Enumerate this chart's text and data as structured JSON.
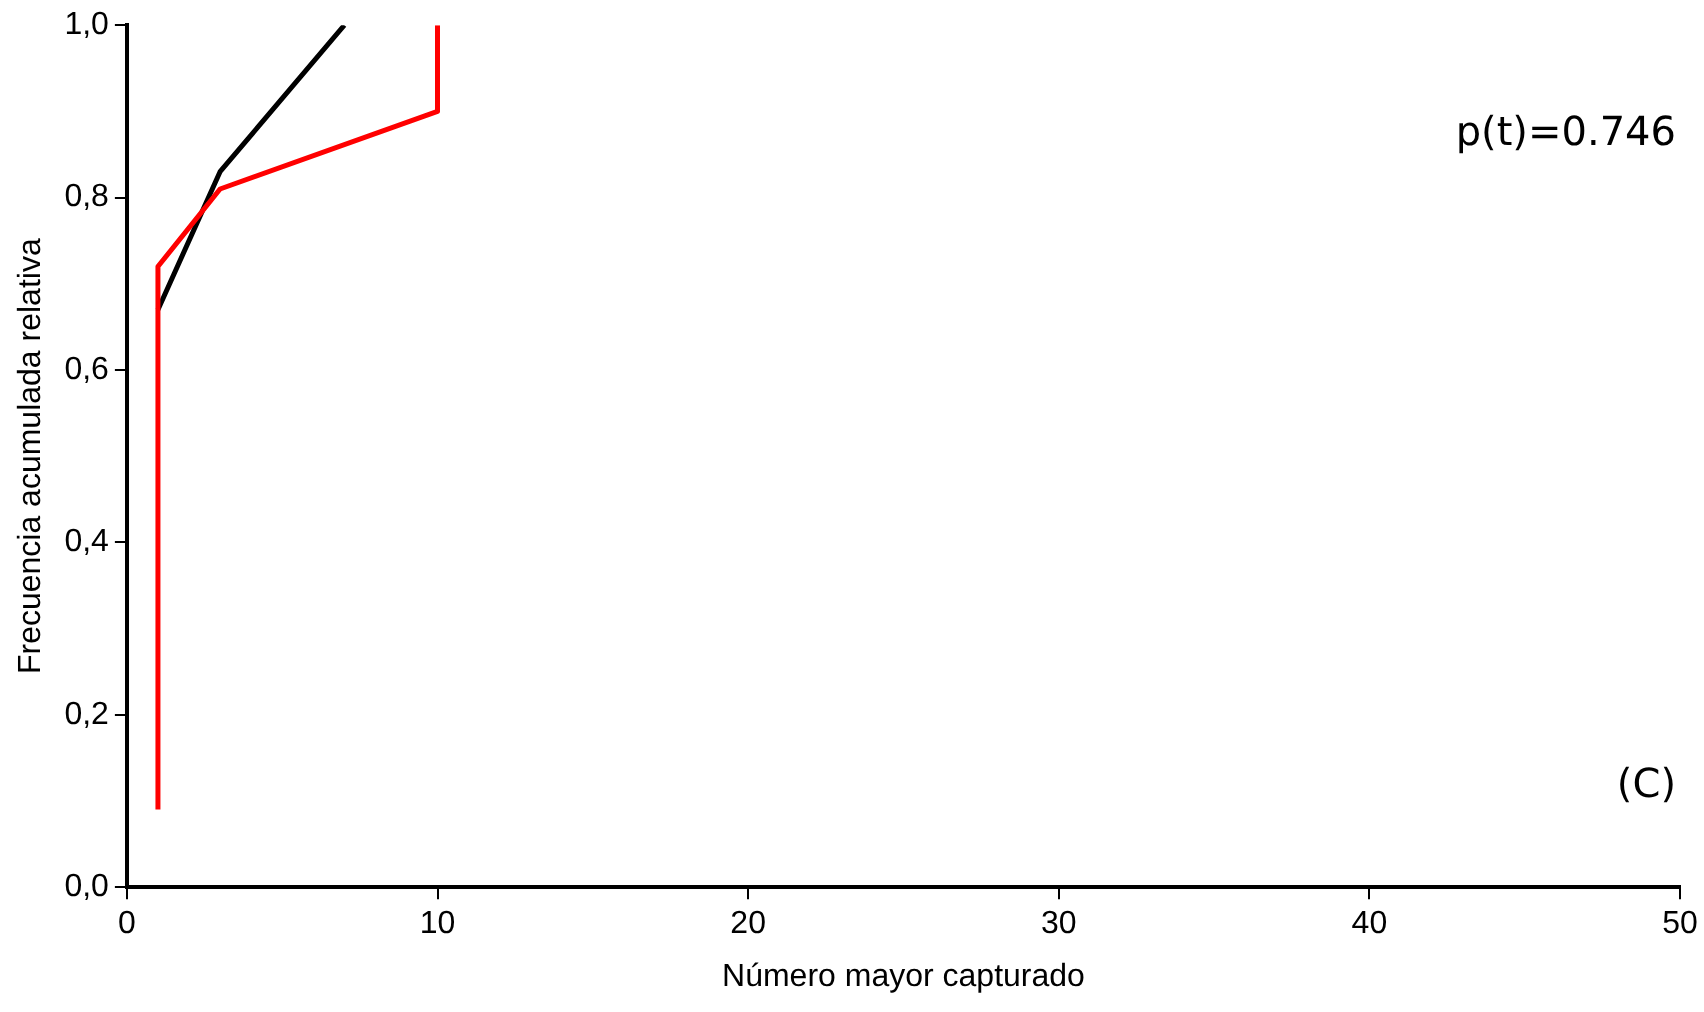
{
  "chart_data": {
    "type": "line",
    "xlabel": "Número mayor capturado",
    "ylabel": "Frecuencia acumulada relativa",
    "xlim": [
      0,
      50
    ],
    "xticks": [
      0,
      10,
      20,
      30,
      40,
      50
    ],
    "ylim": [
      0,
      1
    ],
    "yticks": [
      {
        "value": 0,
        "label": "0,0"
      },
      {
        "value": 0.2,
        "label": "0,2"
      },
      {
        "value": 0.4,
        "label": "0,4"
      },
      {
        "value": 0.6,
        "label": "0,6"
      },
      {
        "value": 0.8,
        "label": "0,8"
      },
      {
        "value": 1,
        "label": "1,0"
      }
    ],
    "series": [
      {
        "color": "#ff0000",
        "x": [
          1,
          1,
          3,
          10,
          10
        ],
        "values": [
          0.09,
          0.72,
          0.81,
          0.9,
          1.0
        ]
      },
      {
        "color": "#000000",
        "x": [
          1,
          3,
          7
        ],
        "values": [
          0.67,
          0.83,
          1.0
        ]
      }
    ],
    "annotations": [
      "p(t)=0.746",
      "(C)"
    ],
    "grid": false,
    "legend": false,
    "marker": "none",
    "line_style": "solid"
  }
}
